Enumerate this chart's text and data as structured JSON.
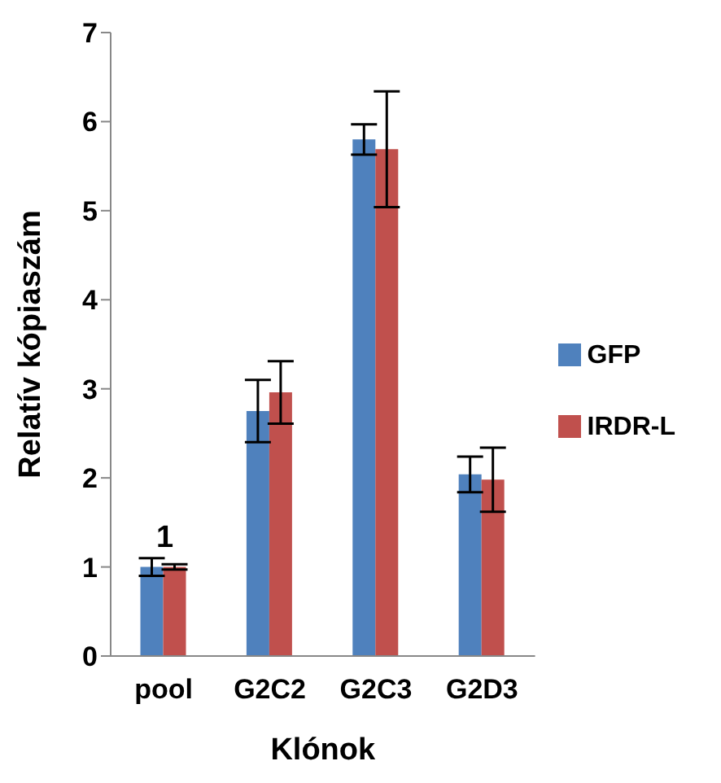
{
  "chart_data": {
    "type": "bar",
    "xlabel": "Klónok",
    "ylabel": "Relatív kópiaszám",
    "categories": [
      "pool",
      "G2C2",
      "G2C3",
      "G2D3"
    ],
    "series": [
      {
        "name": "GFP",
        "color": "#4f81bd",
        "values": [
          1.0,
          2.75,
          5.8,
          2.04
        ],
        "errors": [
          0.1,
          0.35,
          0.17,
          0.2
        ]
      },
      {
        "name": "IRDR-L",
        "color": "#c0504d",
        "values": [
          1.0,
          2.96,
          5.69,
          1.98
        ],
        "errors": [
          0.03,
          0.35,
          0.65,
          0.36
        ]
      }
    ],
    "ylim": [
      0,
      7
    ],
    "yticks": [
      0,
      1,
      2,
      3,
      4,
      5,
      6,
      7
    ],
    "grid": false,
    "legend": "right",
    "annotations": [
      "1"
    ]
  }
}
